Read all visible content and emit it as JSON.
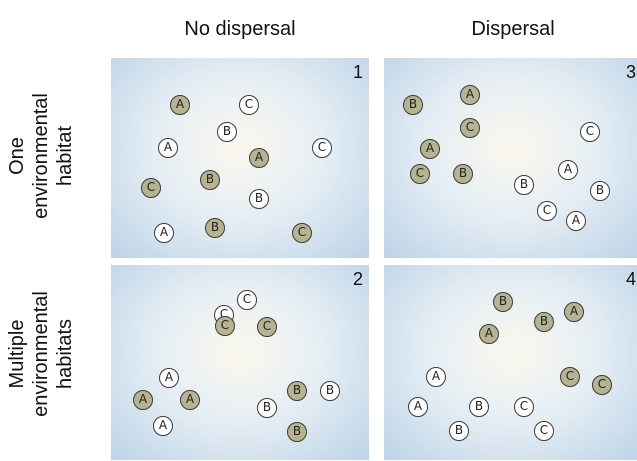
{
  "columns": [
    "No dispersal",
    "Dispersal"
  ],
  "rows": [
    [
      "One",
      "environmental",
      "habitat"
    ],
    [
      "Multiple",
      "environmental",
      "habitats"
    ]
  ],
  "panels": [
    {
      "number": "1",
      "circles": [
        {
          "l": "A",
          "f": true
        },
        {
          "l": "C",
          "f": false
        },
        {
          "l": "B",
          "f": false
        },
        {
          "l": "A",
          "f": false
        },
        {
          "l": "A",
          "f": true
        },
        {
          "l": "C",
          "f": false
        },
        {
          "l": "B",
          "f": true
        },
        {
          "l": "C",
          "f": true
        },
        {
          "l": "B",
          "f": false
        },
        {
          "l": "A",
          "f": false
        },
        {
          "l": "B",
          "f": true
        },
        {
          "l": "C",
          "f": true
        }
      ]
    },
    {
      "number": "3",
      "circles": [
        {
          "l": "A",
          "f": true
        },
        {
          "l": "B",
          "f": true
        },
        {
          "l": "C",
          "f": true
        },
        {
          "l": "A",
          "f": true
        },
        {
          "l": "C",
          "f": false
        },
        {
          "l": "C",
          "f": true
        },
        {
          "l": "B",
          "f": true
        },
        {
          "l": "A",
          "f": false
        },
        {
          "l": "B",
          "f": false
        },
        {
          "l": "B",
          "f": false
        },
        {
          "l": "C",
          "f": false
        },
        {
          "l": "A",
          "f": false
        }
      ]
    },
    {
      "number": "2",
      "circles": [
        {
          "l": "C",
          "f": false
        },
        {
          "l": "C",
          "f": false
        },
        {
          "l": "C",
          "f": true
        },
        {
          "l": "C",
          "f": true
        },
        {
          "l": "A",
          "f": false
        },
        {
          "l": "A",
          "f": true
        },
        {
          "l": "A",
          "f": true
        },
        {
          "l": "A",
          "f": false
        },
        {
          "l": "B",
          "f": false
        },
        {
          "l": "B",
          "f": true
        },
        {
          "l": "B",
          "f": false
        },
        {
          "l": "B",
          "f": true
        }
      ]
    },
    {
      "number": "4",
      "circles": [
        {
          "l": "B",
          "f": true
        },
        {
          "l": "A",
          "f": true
        },
        {
          "l": "A",
          "f": true
        },
        {
          "l": "B",
          "f": true
        },
        {
          "l": "A",
          "f": false
        },
        {
          "l": "C",
          "f": true
        },
        {
          "l": "C",
          "f": true
        },
        {
          "l": "A",
          "f": false
        },
        {
          "l": "B",
          "f": false
        },
        {
          "l": "C",
          "f": false
        },
        {
          "l": "B",
          "f": false
        },
        {
          "l": "C",
          "f": false
        }
      ]
    }
  ]
}
